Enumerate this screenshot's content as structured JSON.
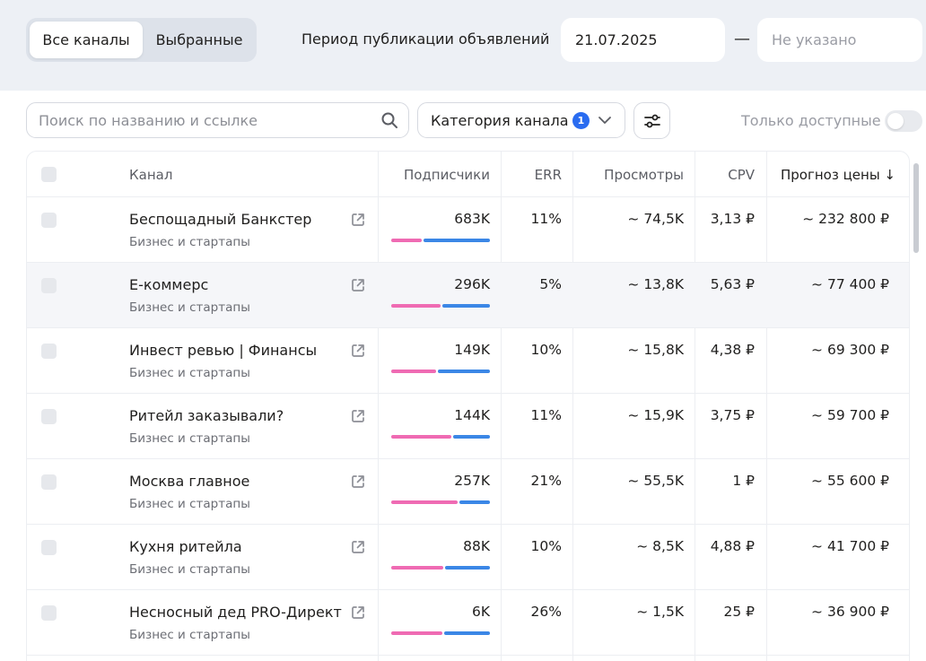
{
  "tabs": {
    "all": "Все каналы",
    "selected": "Выбранные"
  },
  "period": {
    "label": "Период публикации объявлений",
    "from": "21.07.2025",
    "dash": "—",
    "to_placeholder": "Не указано"
  },
  "search": {
    "placeholder": "Поиск по названию и ссылке"
  },
  "category_filter": {
    "label": "Категория канала",
    "badge": "1"
  },
  "only_available": {
    "label": "Только доступные",
    "enabled": false
  },
  "columns": {
    "channel": "Канал",
    "subscribers": "Подписчики",
    "err": "ERR",
    "views": "Просмотры",
    "cpv": "CPV",
    "forecast": "Прогноз цены ↓"
  },
  "rows": [
    {
      "name": "Беспощадный Банкстер",
      "category": "Бизнес и стартапы",
      "subscribers": "683K",
      "err": "11%",
      "views": "~ 74,5K",
      "cpv": "3,13 ₽",
      "price": "~ 232 800 ₽",
      "bar_pink_fraction": 0.31
    },
    {
      "name": "Е-коммерс",
      "category": "Бизнес и стартапы",
      "subscribers": "296K",
      "err": "5%",
      "views": "~ 13,8K",
      "cpv": "5,63 ₽",
      "price": "~ 77 400 ₽",
      "bar_pink_fraction": 0.5
    },
    {
      "name": "Инвест ревью | Финансы",
      "category": "Бизнес и стартапы",
      "subscribers": "149K",
      "err": "10%",
      "views": "~ 15,8K",
      "cpv": "4,38 ₽",
      "price": "~ 69 300 ₽",
      "bar_pink_fraction": 0.45
    },
    {
      "name": "Ритейл заказывали?",
      "category": "Бизнес и стартапы",
      "subscribers": "144K",
      "err": "11%",
      "views": "~ 15,9K",
      "cpv": "3,75 ₽",
      "price": "~ 59 700 ₽",
      "bar_pink_fraction": 0.61
    },
    {
      "name": "Москва главное",
      "category": "Бизнес и стартапы",
      "subscribers": "257K",
      "err": "21%",
      "views": "~ 55,5K",
      "cpv": "1 ₽",
      "price": "~ 55 600 ₽",
      "bar_pink_fraction": 0.67
    },
    {
      "name": "Кухня ритейла",
      "category": "Бизнес и стартапы",
      "subscribers": "88K",
      "err": "10%",
      "views": "~ 8,5K",
      "cpv": "4,88 ₽",
      "price": "~ 41 700 ₽",
      "bar_pink_fraction": 0.53
    },
    {
      "name": "Несносный дед PRO-Директ",
      "category": "Бизнес и стартапы",
      "subscribers": "6K",
      "err": "26%",
      "views": "~ 1,5K",
      "cpv": "25 ₽",
      "price": "~ 36 900 ₽",
      "bar_pink_fraction": 0.52
    }
  ],
  "colors": {
    "accent": "#2a6cf0",
    "bar_pink": "#ef6bb3",
    "bar_blue": "#3b87e6"
  }
}
